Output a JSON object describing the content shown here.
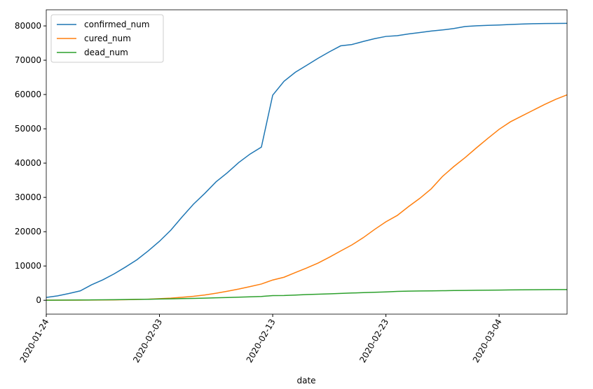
{
  "chart_data": {
    "type": "line",
    "x": [
      "2020-01-24",
      "2020-01-25",
      "2020-01-26",
      "2020-01-27",
      "2020-01-28",
      "2020-01-29",
      "2020-01-30",
      "2020-01-31",
      "2020-02-01",
      "2020-02-02",
      "2020-02-03",
      "2020-02-04",
      "2020-02-05",
      "2020-02-06",
      "2020-02-07",
      "2020-02-08",
      "2020-02-09",
      "2020-02-10",
      "2020-02-11",
      "2020-02-12",
      "2020-02-13",
      "2020-02-14",
      "2020-02-15",
      "2020-02-16",
      "2020-02-17",
      "2020-02-18",
      "2020-02-19",
      "2020-02-20",
      "2020-02-21",
      "2020-02-22",
      "2020-02-23",
      "2020-02-24",
      "2020-02-25",
      "2020-02-26",
      "2020-02-27",
      "2020-02-28",
      "2020-02-29",
      "2020-03-01",
      "2020-03-02",
      "2020-03-03",
      "2020-03-04",
      "2020-03-05",
      "2020-03-06",
      "2020-03-07",
      "2020-03-08",
      "2020-03-09",
      "2020-03-10"
    ],
    "series": [
      {
        "name": "confirmed_num",
        "color": "#1f77b4",
        "values": [
          830,
          1287,
          1975,
          2744,
          4515,
          5974,
          7711,
          9692,
          11791,
          14380,
          17205,
          20438,
          24324,
          28018,
          31161,
          34546,
          37198,
          40171,
          42638,
          44653,
          59804,
          63851,
          66492,
          68500,
          70548,
          72436,
          74185,
          74576,
          75465,
          76288,
          76936,
          77150,
          77658,
          78064,
          78497,
          78824,
          79251,
          79824,
          80026,
          80151,
          80270,
          80409,
          80552,
          80651,
          80695,
          80735,
          80754
        ]
      },
      {
        "name": "cured_num",
        "color": "#ff7f0e",
        "values": [
          34,
          38,
          49,
          51,
          60,
          103,
          124,
          171,
          243,
          328,
          475,
          632,
          892,
          1153,
          1540,
          2050,
          2649,
          3281,
          3996,
          4740,
          5911,
          6723,
          8096,
          9419,
          10844,
          12552,
          14376,
          16155,
          18264,
          20659,
          22888,
          24734,
          27323,
          29745,
          32495,
          36117,
          39002,
          41625,
          44462,
          47204,
          49856,
          52045,
          53726,
          55404,
          57065,
          58600,
          59897
        ]
      },
      {
        "name": "dead_num",
        "color": "#2ca02c",
        "values": [
          25,
          41,
          56,
          80,
          106,
          132,
          170,
          213,
          259,
          304,
          361,
          425,
          490,
          563,
          636,
          722,
          811,
          908,
          1016,
          1113,
          1368,
          1380,
          1523,
          1665,
          1770,
          1868,
          2004,
          2118,
          2236,
          2345,
          2442,
          2592,
          2663,
          2715,
          2744,
          2788,
          2835,
          2870,
          2912,
          2943,
          2981,
          3012,
          3042,
          3070,
          3097,
          3119,
          3136
        ]
      }
    ],
    "x_label": "date",
    "xlim": [
      "2020-01-24",
      "2020-03-10"
    ],
    "xticks": [
      "2020-01-24",
      "2020-02-03",
      "2020-02-13",
      "2020-02-23",
      "2020-03-04"
    ],
    "ylim": [
      -4040,
      84700
    ],
    "yticks": [
      0,
      10000,
      20000,
      30000,
      40000,
      50000,
      60000,
      70000,
      80000
    ],
    "legend": "upper left"
  }
}
